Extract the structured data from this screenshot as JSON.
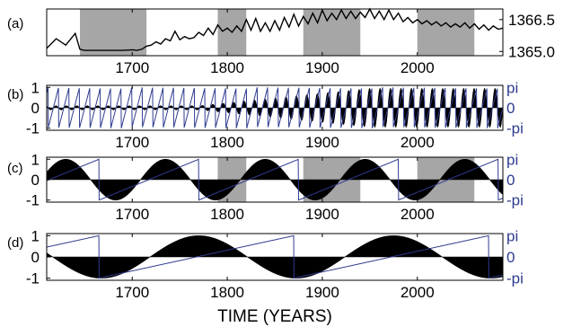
{
  "figure": {
    "xlabel": "TIME (YEARS)",
    "panel_labels": [
      "(a)",
      "(b)",
      "(c)",
      "(d)"
    ]
  },
  "colors": {
    "axes": "#000000",
    "shade": "#a6a6a6",
    "series_black": "#000000",
    "phase_blue": "#2e3b8f"
  },
  "chart_data": [
    {
      "panel": "(a)",
      "type": "line",
      "title": "",
      "xlim": [
        1610,
        2090
      ],
      "ylim": [
        1364.8,
        1367.0
      ],
      "x_ticks": [
        1700,
        1800,
        1900,
        2000
      ],
      "y_ticks": [
        1365.0,
        1366.5
      ],
      "y_tick_labels": [
        "1365.0",
        "1366.5"
      ],
      "y_axis_side": "right",
      "shaded_intervals": [
        [
          1645,
          1715
        ],
        [
          1790,
          1820
        ],
        [
          1880,
          1940
        ],
        [
          2000,
          2060
        ]
      ],
      "series": [
        {
          "x": [
            1610,
            1620,
            1630,
            1640,
            1645,
            1650,
            1660,
            1670,
            1680,
            1690,
            1700,
            1705,
            1710,
            1715,
            1720,
            1725,
            1730,
            1735,
            1740,
            1745,
            1750,
            1755,
            1760,
            1765,
            1770,
            1775,
            1780,
            1785,
            1790,
            1795,
            1800,
            1805,
            1810,
            1815,
            1820,
            1825,
            1830,
            1835,
            1840,
            1845,
            1850,
            1855,
            1860,
            1865,
            1870,
            1875,
            1880,
            1885,
            1890,
            1895,
            1900,
            1905,
            1910,
            1915,
            1920,
            1925,
            1930,
            1935,
            1940,
            1945,
            1950,
            1955,
            1960,
            1965,
            1970,
            1975,
            1980,
            1985,
            1990,
            1995,
            2000,
            2005,
            2010,
            2015,
            2020,
            2025,
            2030,
            2035,
            2040,
            2045,
            2050,
            2055,
            2060,
            2065,
            2070,
            2075,
            2080,
            2085,
            2090
          ],
          "y": [
            1365.15,
            1365.6,
            1365.3,
            1365.85,
            1365.1,
            1365.05,
            1365.05,
            1365.05,
            1365.05,
            1365.05,
            1365.08,
            1365.05,
            1365.1,
            1365.25,
            1365.3,
            1365.45,
            1365.35,
            1365.6,
            1365.5,
            1365.95,
            1365.55,
            1365.7,
            1365.6,
            1365.65,
            1365.9,
            1365.75,
            1366.1,
            1365.8,
            1366.25,
            1365.95,
            1366.1,
            1365.9,
            1366.2,
            1365.95,
            1366.5,
            1366.0,
            1366.55,
            1365.95,
            1366.35,
            1365.95,
            1366.45,
            1366.0,
            1366.6,
            1366.15,
            1366.75,
            1366.2,
            1366.65,
            1366.3,
            1366.8,
            1366.35,
            1366.95,
            1366.45,
            1366.8,
            1366.5,
            1366.95,
            1366.55,
            1366.9,
            1366.55,
            1366.85,
            1366.6,
            1367.0,
            1366.55,
            1366.9,
            1366.5,
            1366.95,
            1366.5,
            1366.8,
            1366.4,
            1366.6,
            1366.35,
            1366.5,
            1366.3,
            1366.45,
            1366.25,
            1366.4,
            1366.2,
            1366.35,
            1366.15,
            1366.3,
            1366.15,
            1366.35,
            1366.1,
            1366.3,
            1366.05,
            1366.25,
            1366.0,
            1366.2,
            1366.05,
            1366.1
          ]
        }
      ]
    },
    {
      "panel": "(b)",
      "type": "line",
      "title": "",
      "xlim": [
        1610,
        2090
      ],
      "ylim": [
        -1.1,
        1.1
      ],
      "x_ticks": [
        1700,
        1800,
        1900,
        2000
      ],
      "y_ticks": [
        -1,
        0,
        1
      ],
      "right_ticks": [
        "pi",
        "0",
        "-pi"
      ],
      "signal": {
        "kind": "filled_oscillation",
        "period_years": 11,
        "amplitude_start": 0.1,
        "amplitude_end": 0.95,
        "growth_start_year": 1770
      },
      "phase": {
        "kind": "sawtooth",
        "period_years": 11,
        "range": [
          "-pi",
          "pi"
        ]
      },
      "shaded_intervals": []
    },
    {
      "panel": "(c)",
      "type": "line",
      "title": "",
      "xlim": [
        1610,
        2090
      ],
      "ylim": [
        -1.1,
        1.1
      ],
      "x_ticks": [
        1700,
        1800,
        1900,
        2000
      ],
      "y_ticks": [
        -1,
        0,
        1
      ],
      "right_ticks": [
        "pi",
        "0",
        "-pi"
      ],
      "signal": {
        "kind": "filled_sine",
        "period_years": 105,
        "amplitude": 1.0,
        "peak_years": [
          1630,
          1740,
          1850,
          1955,
          2065
        ]
      },
      "phase": {
        "kind": "sawtooth",
        "period_years": 105,
        "wraps_at": [
          1665,
          1770,
          1880,
          1980
        ]
      },
      "shaded_intervals": [
        [
          1790,
          1820
        ],
        [
          1880,
          1940
        ],
        [
          2000,
          2060
        ]
      ]
    },
    {
      "panel": "(d)",
      "type": "line",
      "title": "",
      "xlim": [
        1610,
        2090
      ],
      "ylim": [
        -1.1,
        1.1
      ],
      "x_ticks": [
        1700,
        1800,
        1900,
        2000
      ],
      "y_ticks": [
        -1,
        0,
        1
      ],
      "right_ticks": [
        "pi",
        "0",
        "-pi"
      ],
      "signal": {
        "kind": "filled_sine",
        "period_years": 205,
        "amplitude": 1.0,
        "peak_years": [
          1770,
          1975
        ]
      },
      "phase": {
        "kind": "sawtooth",
        "period_years": 205,
        "wraps_at": [
          1665,
          1870,
          2075
        ]
      },
      "shaded_intervals": []
    }
  ]
}
